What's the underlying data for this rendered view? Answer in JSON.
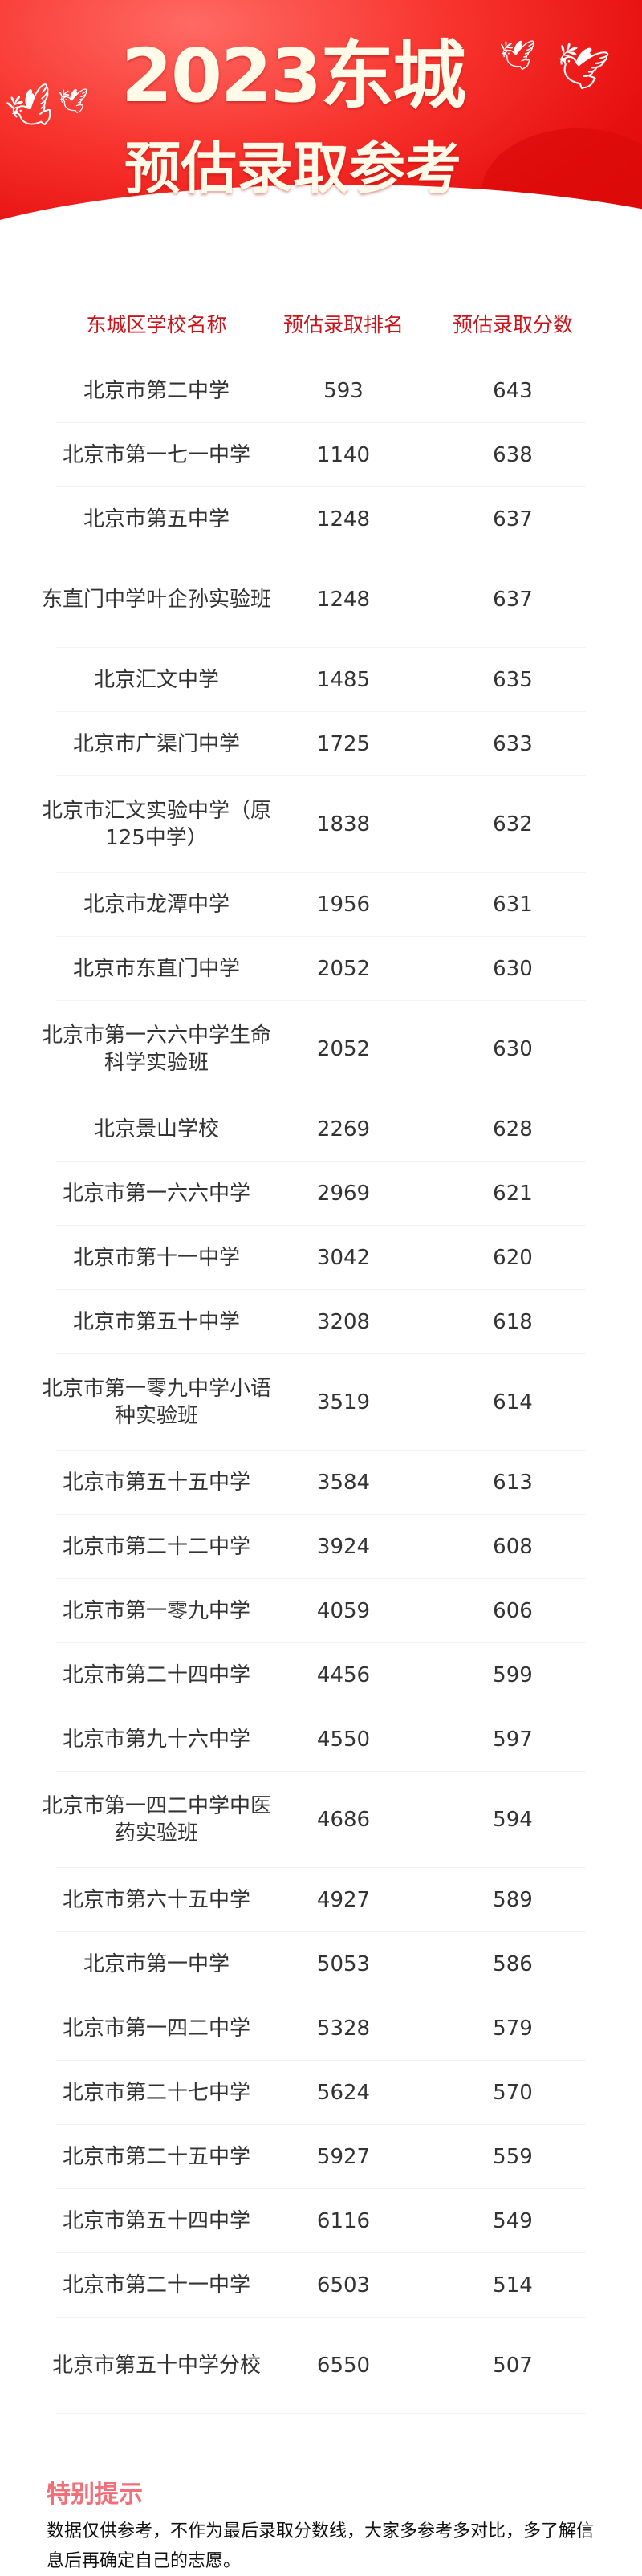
{
  "banner": {
    "title_line1": "2023东城",
    "title_line2": "预估录取参考",
    "colors": {
      "primary": "#e8120f",
      "text": "#fffbe8"
    }
  },
  "table": {
    "headers": [
      "东城区学校名称",
      "预估录取排名",
      "预估录取分数"
    ],
    "header_color": "#c8161d",
    "rows": [
      {
        "name": "北京市第二中学",
        "rank": "593",
        "score": "643"
      },
      {
        "name": "北京市第一七一中学",
        "rank": "1140",
        "score": "638"
      },
      {
        "name": "北京市第五中学",
        "rank": "1248",
        "score": "637"
      },
      {
        "name": "东直门中学叶企孙实验班",
        "rank": "1248",
        "score": "637",
        "tall": true
      },
      {
        "name": "北京汇文中学",
        "rank": "1485",
        "score": "635"
      },
      {
        "name": "北京市广渠门中学",
        "rank": "1725",
        "score": "633"
      },
      {
        "name": "北京市汇文实验中学（原125中学）",
        "rank": "1838",
        "score": "632",
        "tall": true
      },
      {
        "name": "北京市龙潭中学",
        "rank": "1956",
        "score": "631"
      },
      {
        "name": "北京市东直门中学",
        "rank": "2052",
        "score": "630"
      },
      {
        "name": "北京市第一六六中学生命科学实验班",
        "rank": "2052",
        "score": "630",
        "tall": true
      },
      {
        "name": "北京景山学校",
        "rank": "2269",
        "score": "628"
      },
      {
        "name": "北京市第一六六中学",
        "rank": "2969",
        "score": "621"
      },
      {
        "name": "北京市第十一中学",
        "rank": "3042",
        "score": "620"
      },
      {
        "name": "北京市第五十中学",
        "rank": "3208",
        "score": "618"
      },
      {
        "name": "北京市第一零九中学小语种实验班",
        "rank": "3519",
        "score": "614",
        "tall": true
      },
      {
        "name": "北京市第五十五中学",
        "rank": "3584",
        "score": "613"
      },
      {
        "name": "北京市第二十二中学",
        "rank": "3924",
        "score": "608"
      },
      {
        "name": "北京市第一零九中学",
        "rank": "4059",
        "score": "606"
      },
      {
        "name": "北京市第二十四中学",
        "rank": "4456",
        "score": "599"
      },
      {
        "name": "北京市第九十六中学",
        "rank": "4550",
        "score": "597"
      },
      {
        "name": "北京市第一四二中学中医药实验班",
        "rank": "4686",
        "score": "594",
        "tall": true
      },
      {
        "name": "北京市第六十五中学",
        "rank": "4927",
        "score": "589"
      },
      {
        "name": "北京市第一中学",
        "rank": "5053",
        "score": "586"
      },
      {
        "name": "北京市第一四二中学",
        "rank": "5328",
        "score": "579"
      },
      {
        "name": "北京市第二十七中学",
        "rank": "5624",
        "score": "570"
      },
      {
        "name": "北京市第二十五中学",
        "rank": "5927",
        "score": "559"
      },
      {
        "name": "北京市第五十四中学",
        "rank": "6116",
        "score": "549"
      },
      {
        "name": "北京市第二十一中学",
        "rank": "6503",
        "score": "514"
      },
      {
        "name": "北京市第五十中学分校",
        "rank": "6550",
        "score": "507",
        "tall": true
      }
    ]
  },
  "notice": {
    "title": "特别提示",
    "text": "数据仅供参考，不作为最后录取分数线，大家多参考多对比，多了解信息后再确定自己的志愿。",
    "title_color": "#f0707a"
  }
}
